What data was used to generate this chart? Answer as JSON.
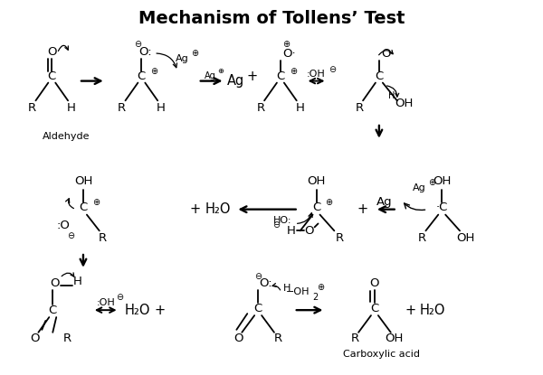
{
  "title": "Mechanism of Tollens’ Test",
  "bg": "#ffffff",
  "label_aldehyde": "Aldehyde",
  "label_carboxylic": "Carboxylic acid"
}
